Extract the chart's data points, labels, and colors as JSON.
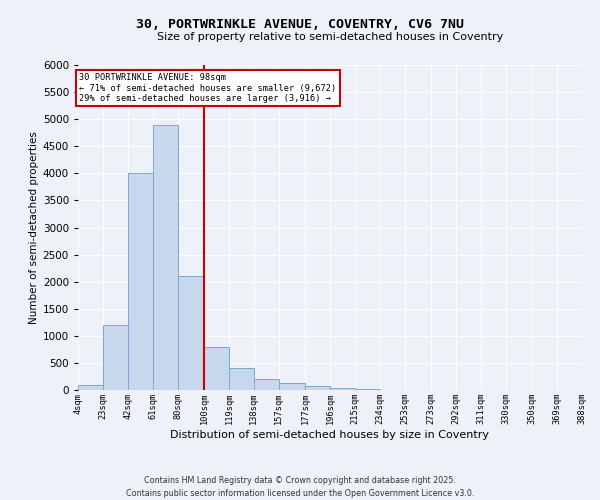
{
  "title_line1": "30, PORTWRINKLE AVENUE, COVENTRY, CV6 7NU",
  "title_line2": "Size of property relative to semi-detached houses in Coventry",
  "xlabel": "Distribution of semi-detached houses by size in Coventry",
  "ylabel": "Number of semi-detached properties",
  "property_label": "30 PORTWRINKLE AVENUE: 98sqm",
  "pct_smaller": 71,
  "count_smaller": 9672,
  "pct_larger": 29,
  "count_larger": 3916,
  "bar_color": "#c8d8ec",
  "bar_edge_color": "#7aaaca",
  "vline_color": "#cc0000",
  "annotation_box_edgecolor": "#cc0000",
  "background_color": "#eef2f8",
  "grid_color": "#ffffff",
  "bin_edges": [
    4,
    23,
    42,
    61,
    80,
    100,
    119,
    138,
    157,
    177,
    196,
    215,
    234,
    253,
    273,
    292,
    311,
    330,
    350,
    369,
    388
  ],
  "bin_labels": [
    "4sqm",
    "23sqm",
    "42sqm",
    "61sqm",
    "80sqm",
    "100sqm",
    "119sqm",
    "138sqm",
    "157sqm",
    "177sqm",
    "196sqm",
    "215sqm",
    "234sqm",
    "253sqm",
    "273sqm",
    "292sqm",
    "311sqm",
    "330sqm",
    "350sqm",
    "369sqm",
    "388sqm"
  ],
  "counts": [
    100,
    1200,
    4000,
    4900,
    2100,
    800,
    400,
    200,
    130,
    70,
    30,
    10,
    5,
    2,
    1,
    0,
    0,
    0,
    0,
    0
  ],
  "vline_x": 100,
  "ylim": [
    0,
    6000
  ],
  "yticks": [
    0,
    500,
    1000,
    1500,
    2000,
    2500,
    3000,
    3500,
    4000,
    4500,
    5000,
    5500,
    6000
  ],
  "footer": "Contains HM Land Registry data © Crown copyright and database right 2025.\nContains public sector information licensed under the Open Government Licence v3.0."
}
